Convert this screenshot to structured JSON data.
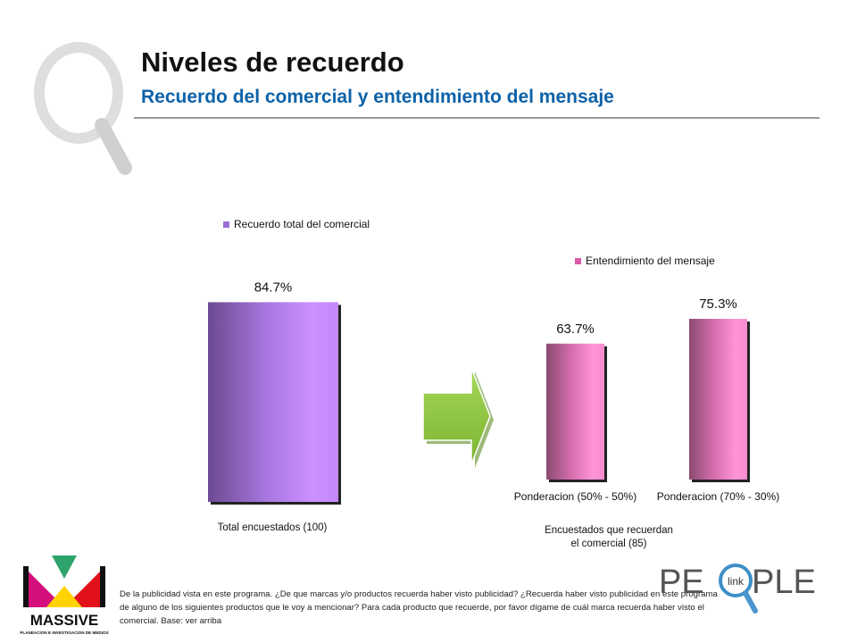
{
  "header": {
    "title": "Niveles de recuerdo",
    "subtitle": "Recuerdo del comercial y entendimiento del mensaje"
  },
  "chart_data": [
    {
      "type": "bar",
      "legend": "Recuerdo total del comercial",
      "legend_position": "top",
      "categories": [
        ""
      ],
      "series": [
        {
          "name": "Recuerdo total del comercial",
          "values": [
            84.7
          ]
        }
      ],
      "data_labels": [
        "84.7%"
      ],
      "xlabel": "Total encuestados (100)",
      "ylim": [
        0,
        100
      ],
      "grid": false,
      "color": "#c98bff"
    },
    {
      "type": "bar",
      "legend": "Entendimiento del mensaje",
      "legend_position": "top",
      "categories": [
        "Ponderacion (50% - 50%)",
        "Ponderacion (70% - 30%)"
      ],
      "series": [
        {
          "name": "Entendimiento del mensaje",
          "values": [
            63.7,
            75.3
          ]
        }
      ],
      "data_labels": [
        "63.7%",
        "75.3%"
      ],
      "xlabel": [
        "Encuestados que recuerdan",
        "el comercial (85)"
      ],
      "ylim": [
        0,
        100
      ],
      "grid": false,
      "color": "#f07ec4"
    }
  ],
  "footnote": "De la publicidad vista en este programa. ¿De que marcas y/o productos recuerda haber visto publicidad? ¿Recuerda haber visto publicidad en este programa de alguno de los siguientes productos que le voy a mencionar? Para cada producto que recuerde, por favor dígame de cuál marca recuerda haber visto el comercial. Base: ver arriba",
  "logos": {
    "massive": {
      "name": "MASSIVE",
      "tagline": "PLANEACION E INVESTIGACION DE MEDIOS"
    },
    "people": {
      "left": "PE",
      "mark": "link",
      "right": "PLE"
    }
  },
  "icons": {
    "watermark": "magnifier-q-icon",
    "arrow": "right-arrow-icon"
  },
  "colors": {
    "title": "#111111",
    "subtitle": "#0d62a8",
    "purple_bar": "#c98bff",
    "pink_bar": "#f07ec4",
    "arrow": "#8dc63f"
  }
}
